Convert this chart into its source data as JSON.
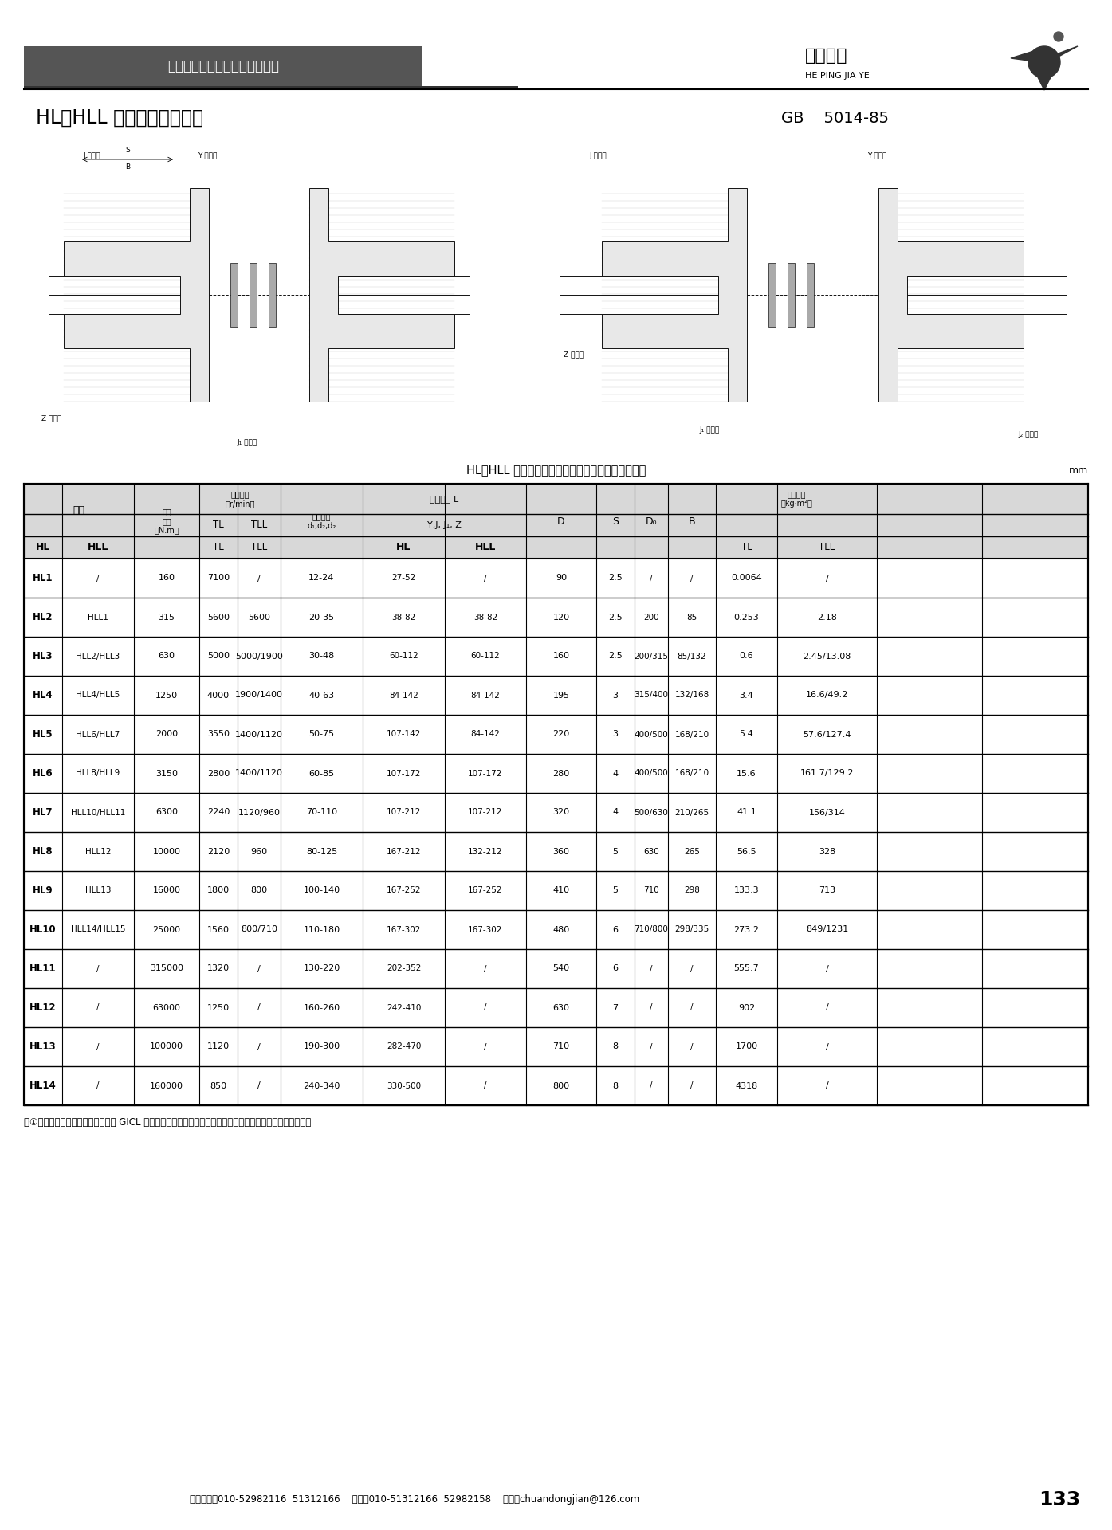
{
  "page_bg": "#ffffff",
  "header_bar_text": "北京和平佳业传动设备有限公司",
  "brand_name": "和平佳业",
  "brand_sub": "HE PING JIA YE",
  "title_left": "HL、HLL 型弹性柱销联轴器",
  "title_right": "GB    5014-85",
  "table_title": "HL、HLL 型弹性套柱销联轴器的基本参数和主要尺寸",
  "table_unit": "mm",
  "rows": [
    [
      "HL1",
      "/",
      "160",
      "7100",
      "/",
      "12-24",
      "27-52",
      "/",
      "90",
      "2.5",
      "/",
      "/",
      "0.0064",
      "/"
    ],
    [
      "HL2",
      "HLL1",
      "315",
      "5600",
      "5600",
      "20-35",
      "38-82",
      "38-82",
      "120",
      "2.5",
      "200",
      "85",
      "0.253",
      "2.18"
    ],
    [
      "HL3",
      "HLL2/HLL3",
      "630",
      "5000",
      "5000/1900",
      "30-48",
      "60-112",
      "60-112",
      "160",
      "2.5",
      "200/315",
      "85/132",
      "0.6",
      "2.45/13.08"
    ],
    [
      "HL4",
      "HLL4/HLL5",
      "1250",
      "4000",
      "1900/1400",
      "40-63",
      "84-142",
      "84-142",
      "195",
      "3",
      "315/400",
      "132/168",
      "3.4",
      "16.6/49.2"
    ],
    [
      "HL5",
      "HLL6/HLL7",
      "2000",
      "3550",
      "1400/1120",
      "50-75",
      "107-142",
      "84-142",
      "220",
      "3",
      "400/500",
      "168/210",
      "5.4",
      "57.6/127.4"
    ],
    [
      "HL6",
      "HLL8/HLL9",
      "3150",
      "2800",
      "1400/1120",
      "60-85",
      "107-172",
      "107-172",
      "280",
      "4",
      "400/500",
      "168/210",
      "15.6",
      "161.7/129.2"
    ],
    [
      "HL7",
      "HLL10/HLL11",
      "6300",
      "2240",
      "1120/960",
      "70-110",
      "107-212",
      "107-212",
      "320",
      "4",
      "500/630",
      "210/265",
      "41.1",
      "156/314"
    ],
    [
      "HL8",
      "HLL12",
      "10000",
      "2120",
      "960",
      "80-125",
      "167-212",
      "132-212",
      "360",
      "5",
      "630",
      "265",
      "56.5",
      "328"
    ],
    [
      "HL9",
      "HLL13",
      "16000",
      "1800",
      "800",
      "100-140",
      "167-252",
      "167-252",
      "410",
      "5",
      "710",
      "298",
      "133.3",
      "713"
    ],
    [
      "HL10",
      "HLL14/HLL15",
      "25000",
      "1560",
      "800/710",
      "110-180",
      "167-302",
      "167-302",
      "480",
      "6",
      "710/800",
      "298/335",
      "273.2",
      "849/1231"
    ],
    [
      "HL11",
      "/",
      "315000",
      "1320",
      "/",
      "130-220",
      "202-352",
      "/",
      "540",
      "6",
      "/",
      "/",
      "555.7",
      "/"
    ],
    [
      "HL12",
      "/",
      "63000",
      "1250",
      "/",
      "160-260",
      "242-410",
      "/",
      "630",
      "7",
      "/",
      "/",
      "902",
      "/"
    ],
    [
      "HL13",
      "/",
      "100000",
      "1120",
      "/",
      "190-300",
      "282-470",
      "/",
      "710",
      "8",
      "/",
      "/",
      "1700",
      "/"
    ],
    [
      "HL14",
      "/",
      "160000",
      "850",
      "/",
      "240-340",
      "330-500",
      "/",
      "800",
      "8",
      "/",
      "/",
      "4318",
      "/"
    ]
  ],
  "note": "注①轴孔直径与长度对应尺寸可参阅 GICL 表中的对应尺寸选取，亦可按本表中的尺寸范围内的任何尺寸选取。",
  "footer": "销售电话：010-52982116  51312166    传真：010-51312166  52982158    邮箱：chuandongjian@126.com",
  "page_number": "133"
}
